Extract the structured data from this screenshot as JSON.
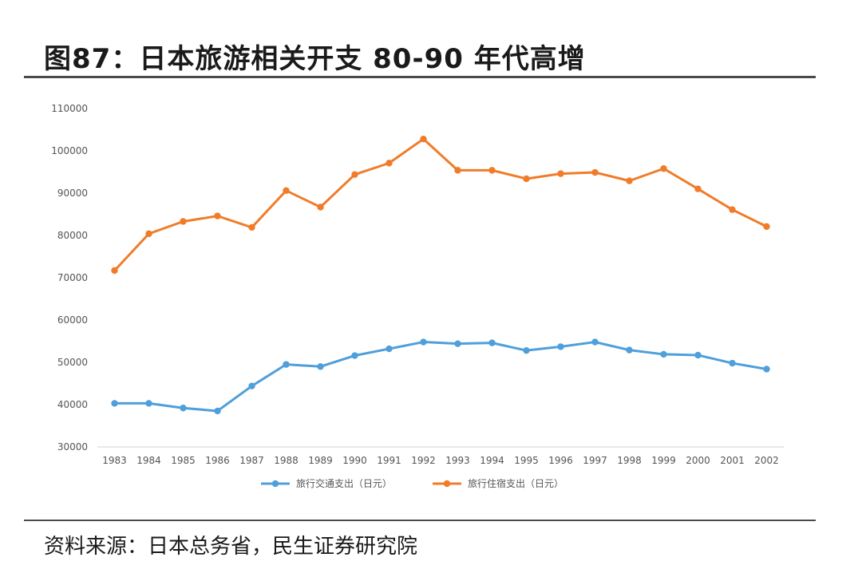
{
  "header": {
    "title": "图87：日本旅游相关开支 80-90 年代高增"
  },
  "footer": {
    "source": "资料来源：日本总务省，民生证券研究院"
  },
  "chart_data": {
    "type": "line",
    "title": "",
    "xlabel": "",
    "ylabel": "",
    "grid": "horizontal baseline only",
    "legend_position": "bottom-center",
    "ylim": [
      30000,
      110000
    ],
    "yticks": [
      30000,
      40000,
      50000,
      60000,
      70000,
      80000,
      90000,
      100000,
      110000
    ],
    "categories": [
      "1983",
      "1984",
      "1985",
      "1986",
      "1987",
      "1988",
      "1989",
      "1990",
      "1991",
      "1992",
      "1993",
      "1994",
      "1995",
      "1996",
      "1997",
      "1998",
      "1999",
      "2000",
      "2001",
      "2002"
    ],
    "series": [
      {
        "name": "旅行交通支出（日元）",
        "color": "#4e9fdb",
        "values": [
          40300,
          40300,
          39200,
          38500,
          44400,
          49500,
          49000,
          51600,
          53200,
          54800,
          54400,
          54600,
          52800,
          53700,
          54800,
          52900,
          51900,
          51700,
          49800,
          48400
        ]
      },
      {
        "name": "旅行住宿支出（日元）",
        "color": "#f07c2a",
        "values": [
          71700,
          80400,
          83300,
          84600,
          81900,
          90600,
          86700,
          94400,
          97100,
          102800,
          95400,
          95400,
          93400,
          94600,
          94900,
          92900,
          95800,
          91000,
          86100,
          82100
        ]
      }
    ]
  }
}
